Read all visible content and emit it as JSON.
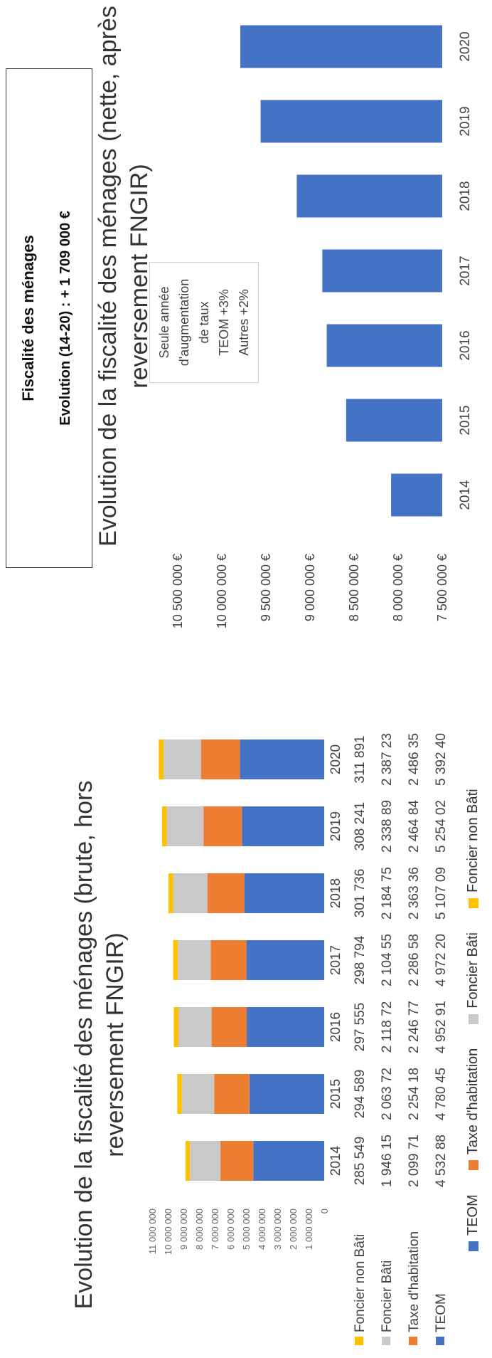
{
  "header": {
    "title": "Fiscalité des ménages",
    "subtitle": "Evolution (14-20) : + 1 709 000 €"
  },
  "colors": {
    "teom": "#4472c4",
    "taxe_habitation": "#ed7d31",
    "foncier_bati": "#c9c9c9",
    "foncier_non_bati": "#ffc000"
  },
  "chart_data": [
    {
      "type": "bar",
      "stacked": true,
      "title": "Evolution de la fiscalité des ménages (brute, hors reversement FNGIR)",
      "categories": [
        "2014",
        "2015",
        "2016",
        "2017",
        "2018",
        "2019",
        "2020"
      ],
      "y_ticks": [
        "0",
        "1 000 000",
        "2 000 000",
        "3 000 000",
        "4 000 000",
        "5 000 000",
        "6 000 000",
        "7 000 000",
        "8 000 000",
        "9 000 000",
        "10 000 000",
        "11 000 000"
      ],
      "ylim": [
        0,
        11000000
      ],
      "series": [
        {
          "name": "Foncier non Bâti",
          "values": [
            285549,
            294589,
            297555,
            298794,
            301736,
            308241,
            311891
          ],
          "labels": [
            "285 549",
            "294 589",
            "297 555",
            "298 794",
            "301 736",
            "308 241",
            "311 891"
          ]
        },
        {
          "name": "Foncier Bâti",
          "values": [
            1946150,
            2063720,
            2118720,
            2104550,
            2184750,
            2338890,
            2387230
          ],
          "labels": [
            "1 946 15",
            "2 063 72",
            "2 118 72",
            "2 104 55",
            "2 184 75",
            "2 338 89",
            "2 387 23"
          ]
        },
        {
          "name": "Taxe d'habitation",
          "values": [
            2099710,
            2254180,
            2246770,
            2286580,
            2363360,
            2464840,
            2486350
          ],
          "labels": [
            "2 099 71",
            "2 254 18",
            "2 246 77",
            "2 286 58",
            "2 363 36",
            "2 464 84",
            "2 486 35"
          ]
        },
        {
          "name": "TEOM",
          "values": [
            4532880,
            4780450,
            4952910,
            4972200,
            5107090,
            5254020,
            5392400
          ],
          "labels": [
            "4 532 88",
            "4 780 45",
            "4 952 91",
            "4 972 20",
            "5 107 09",
            "5 254 02",
            "5 392 40"
          ]
        }
      ],
      "legend": [
        "TEOM",
        "Taxe d'habitation",
        "Foncier Bâti",
        "Foncier non Bâti"
      ]
    },
    {
      "type": "bar",
      "title": "Evolution de la fiscalité des ménages (nette, après reversement FNGIR)",
      "categories": [
        "2014",
        "2015",
        "2016",
        "2017",
        "2018",
        "2019",
        "2020"
      ],
      "values": [
        8080000,
        8590000,
        8810000,
        8860000,
        9150000,
        9560000,
        9790000
      ],
      "y_ticks": [
        "7 500 000 €",
        "8 000 000 €",
        "8 500 000 €",
        "9 000 000 €",
        "9 500 000 €",
        "10 000 000 €",
        "10 500 000 €"
      ],
      "ylim": [
        7500000,
        10500000
      ],
      "annotation": {
        "lines": [
          "Seule année",
          "d'augmentation",
          "de taux",
          "TEOM +3%",
          "Autres +2%"
        ],
        "category": "2015"
      }
    }
  ]
}
